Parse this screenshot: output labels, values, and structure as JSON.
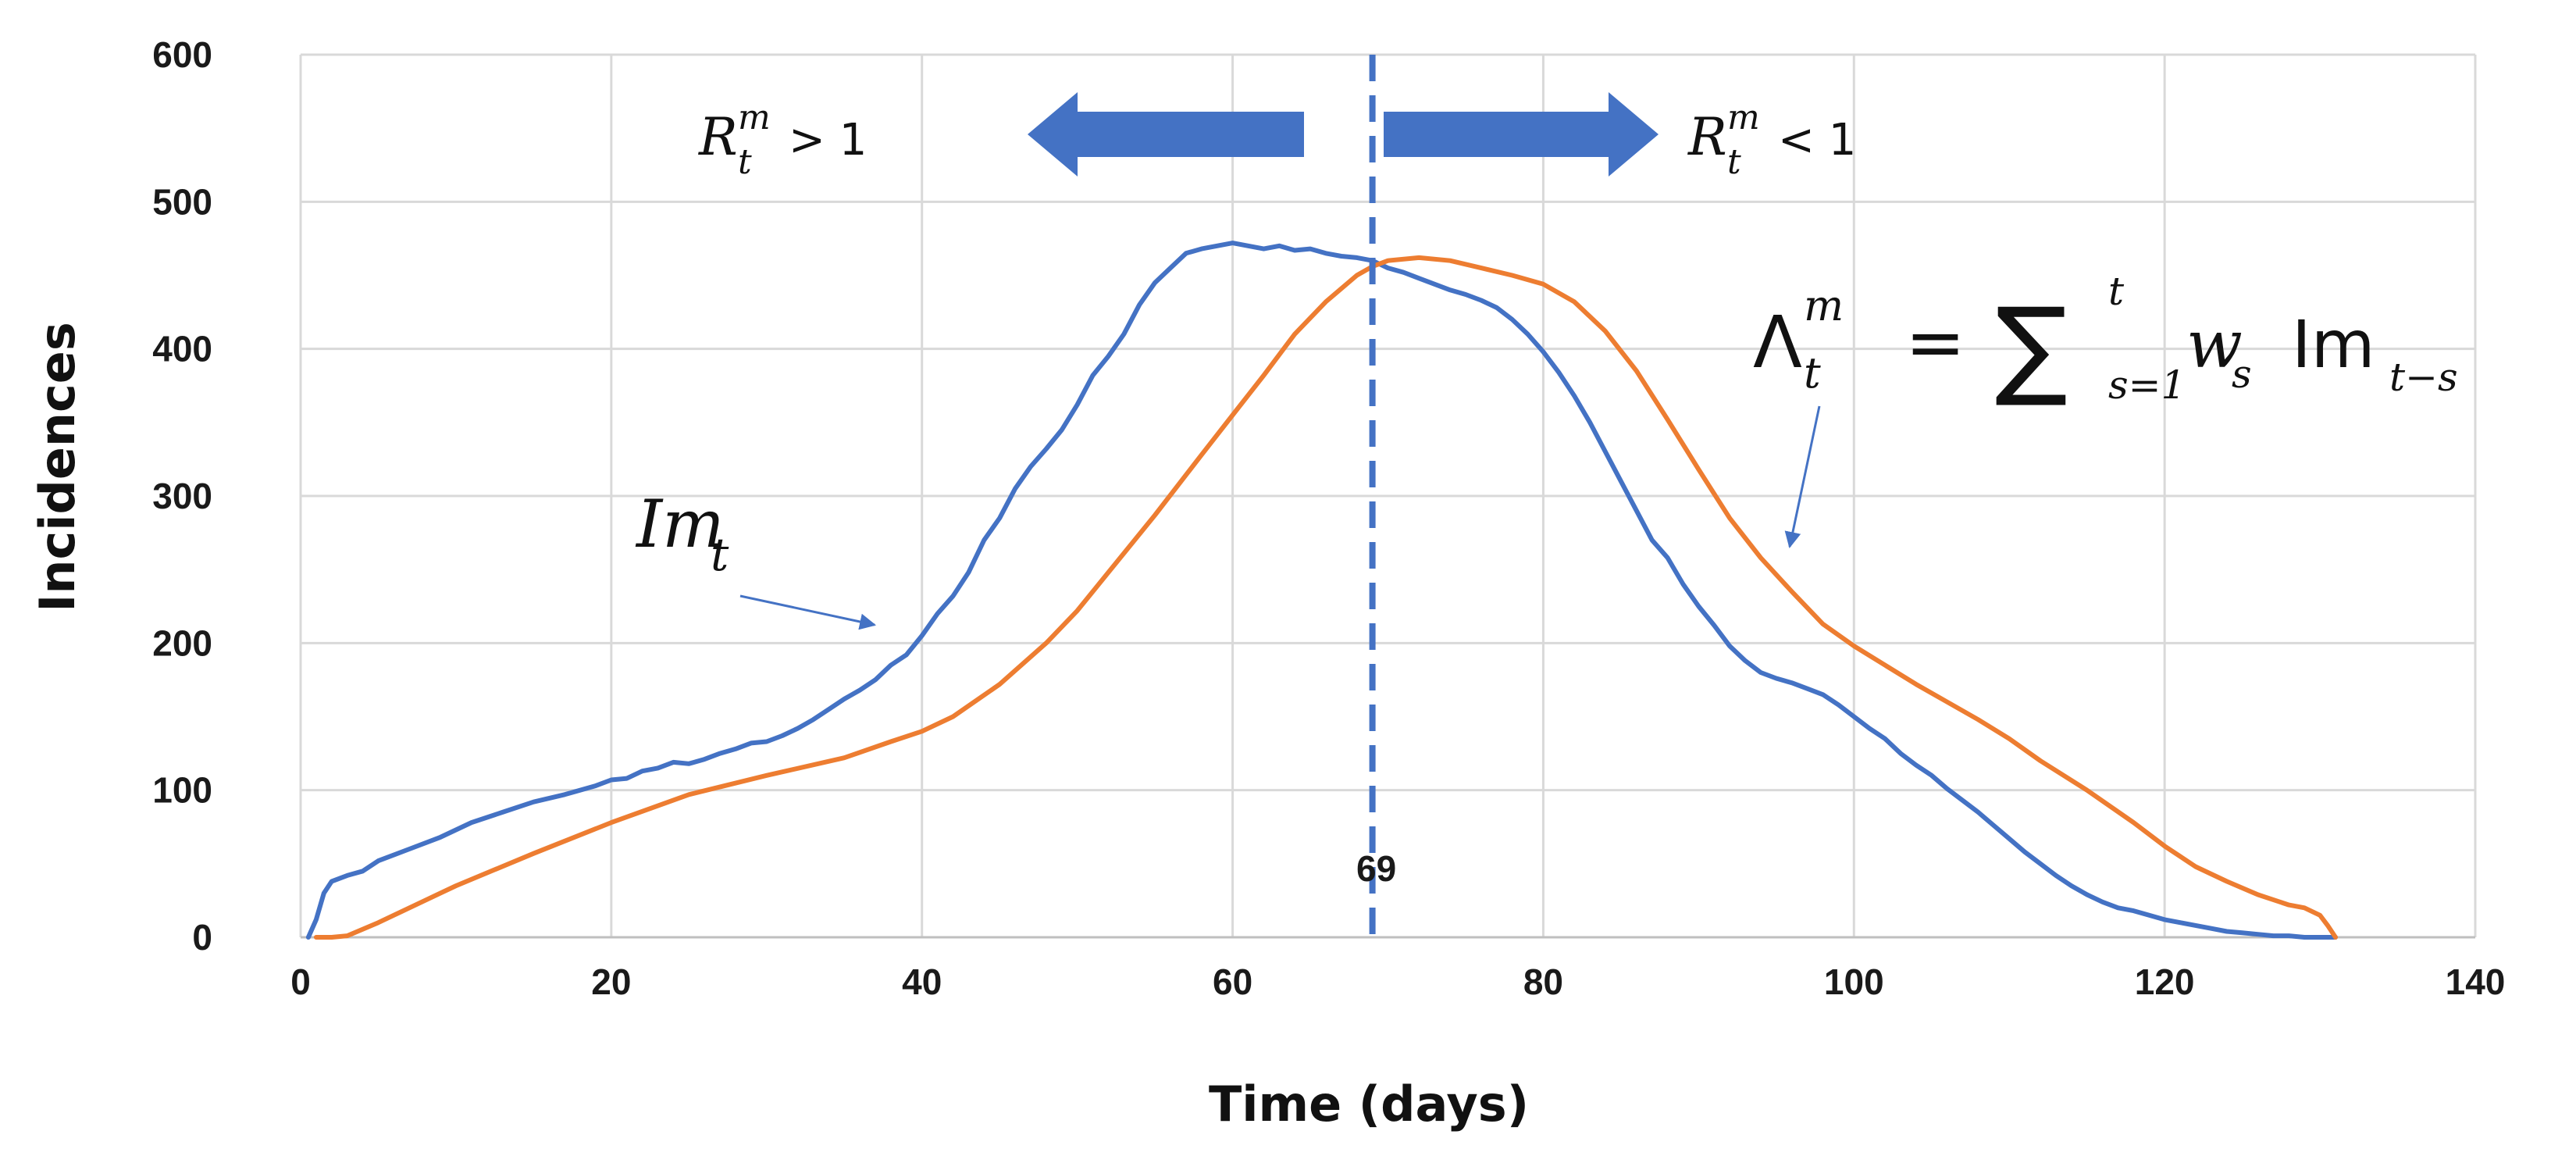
{
  "chart_data": {
    "type": "line",
    "title": "",
    "xlabel": "Time (days)",
    "ylabel": "Incidences",
    "xlim": [
      0,
      140
    ],
    "ylim": [
      0,
      600
    ],
    "xticks": [
      "0",
      "20",
      "40",
      "60",
      "80",
      "100",
      "120",
      "140"
    ],
    "yticks": [
      "0",
      "100",
      "200",
      "300",
      "400",
      "500",
      "600"
    ],
    "grid": true,
    "series": [
      {
        "name": "Im_t",
        "color": "#4472C4",
        "x": [
          0.5,
          1,
          1.5,
          2,
          3,
          4,
          5,
          7,
          9,
          11,
          13,
          15,
          17,
          19,
          20,
          21,
          22,
          23,
          24,
          25,
          26,
          27,
          28,
          29,
          30,
          31,
          32,
          33,
          34,
          35,
          36,
          37,
          38,
          39,
          40,
          41,
          42,
          43,
          44,
          45,
          46,
          47,
          48,
          49,
          50,
          51,
          52,
          53,
          54,
          55,
          56,
          57,
          58,
          59,
          60,
          61,
          62,
          63,
          64,
          65,
          66,
          67,
          68,
          69,
          70,
          71,
          72,
          73,
          74,
          75,
          76,
          77,
          78,
          79,
          80,
          81,
          82,
          83,
          84,
          85,
          86,
          87,
          88,
          89,
          90,
          91,
          92,
          93,
          94,
          95,
          96,
          97,
          98,
          99,
          100,
          101,
          102,
          103,
          104,
          105,
          106,
          107,
          108,
          109,
          110,
          111,
          112,
          113,
          114,
          115,
          116,
          117,
          118,
          119,
          120,
          121,
          122,
          123,
          124,
          125,
          126,
          127,
          128,
          129,
          130,
          131
        ],
        "y": [
          0,
          12,
          30,
          38,
          42,
          45,
          52,
          60,
          68,
          78,
          85,
          92,
          97,
          103,
          107,
          108,
          113,
          115,
          119,
          118,
          121,
          125,
          128,
          132,
          133,
          137,
          142,
          148,
          155,
          162,
          168,
          175,
          185,
          192,
          205,
          220,
          232,
          248,
          270,
          285,
          305,
          320,
          332,
          345,
          362,
          382,
          395,
          410,
          430,
          445,
          455,
          465,
          468,
          470,
          472,
          470,
          468,
          470,
          467,
          468,
          465,
          463,
          462,
          460,
          455,
          452,
          448,
          444,
          440,
          437,
          433,
          428,
          420,
          410,
          398,
          384,
          368,
          350,
          330,
          310,
          290,
          270,
          258,
          240,
          225,
          212,
          198,
          188,
          180,
          176,
          173,
          169,
          165,
          158,
          150,
          142,
          135,
          125,
          117,
          110,
          101,
          93,
          85,
          76,
          67,
          58,
          50,
          42,
          35,
          29,
          24,
          20,
          18,
          15,
          12,
          10,
          8,
          6,
          4,
          3,
          2,
          1,
          1,
          0,
          0,
          0
        ]
      },
      {
        "name": "Lambda_t^m",
        "color": "#ED7D31",
        "x": [
          1,
          2,
          3,
          5,
          8,
          10,
          15,
          20,
          25,
          30,
          35,
          38,
          40,
          42,
          45,
          48,
          50,
          52,
          55,
          58,
          60,
          62,
          64,
          66,
          68,
          69,
          70,
          72,
          74,
          76,
          78,
          80,
          82,
          84,
          86,
          88,
          90,
          92,
          94,
          96,
          98,
          100,
          102,
          104,
          106,
          108,
          110,
          112,
          115,
          118,
          120,
          122,
          124,
          126,
          128,
          129,
          130,
          130.5,
          131
        ],
        "y": [
          0,
          0,
          1,
          10,
          25,
          35,
          57,
          78,
          97,
          110,
          122,
          133,
          140,
          150,
          172,
          200,
          222,
          248,
          287,
          328,
          355,
          382,
          410,
          432,
          450,
          456,
          460,
          462,
          460,
          455,
          450,
          444,
          432,
          412,
          385,
          352,
          318,
          285,
          258,
          235,
          213,
          198,
          185,
          172,
          160,
          148,
          135,
          120,
          100,
          78,
          62,
          48,
          38,
          29,
          22,
          20,
          15,
          8,
          0
        ]
      }
    ],
    "vline": {
      "x": 69,
      "label": "69",
      "color": "#4472C4",
      "style": "dashed"
    },
    "annotations": {
      "left_arrow": {
        "var": "R",
        "sup": "m",
        "sub": "t",
        "rel": "> 1"
      },
      "right_arrow": {
        "var": "R",
        "sup": "m",
        "sub": "t",
        "rel": "< 1"
      },
      "im_label": {
        "base": "Im",
        "sub": "t"
      },
      "formula": {
        "lhs": "Λ",
        "lhs_sup": "m",
        "lhs_sub": "t",
        "eq": "=",
        "sum": "∑",
        "sum_sup": "t",
        "sum_sub": "s=1",
        "w": "w",
        "w_sub": "s",
        "im": "Im",
        "im_sub": "t−s"
      }
    }
  }
}
